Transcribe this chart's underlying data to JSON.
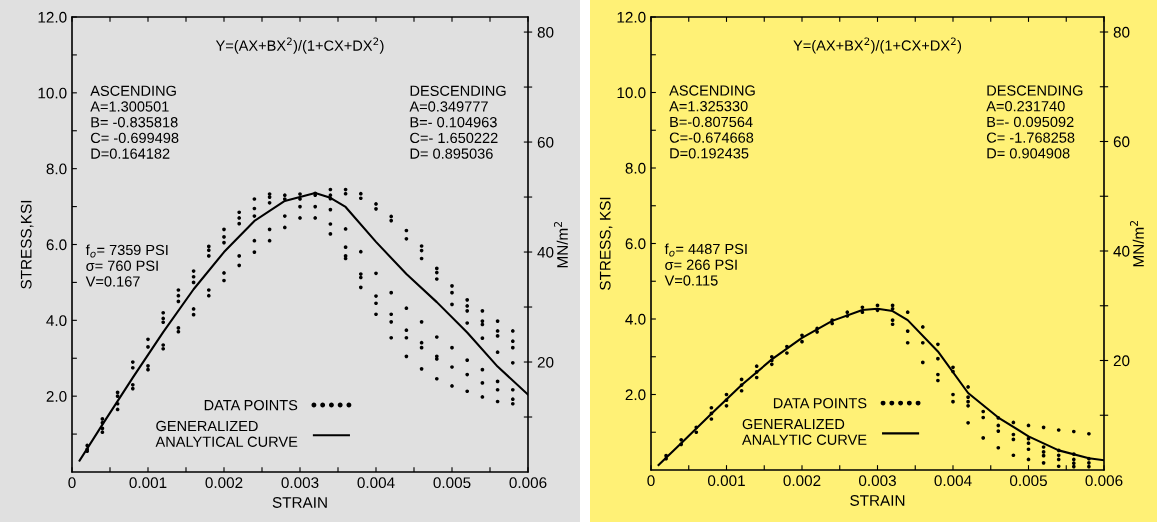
{
  "chart_data": [
    {
      "type": "scatter",
      "xlabel": "STRAIN",
      "ylabel": "STRESS,KSI",
      "y2label": "MN/m$^{2}$",
      "xlim": [
        0,
        0.006
      ],
      "xticks": [
        0,
        {
          "value": 0.0005,
          "label": null
        },
        0.001,
        {
          "value": 0.0015,
          "label": null
        },
        0.002,
        {
          "value": 0.0025,
          "label": null
        },
        0.003,
        {
          "value": 0.0035,
          "label": null
        },
        0.004,
        {
          "value": 0.0045,
          "label": null
        },
        0.005,
        {
          "value": 0.0055,
          "label": null
        },
        0.006
      ],
      "ylim": [
        0,
        12
      ],
      "yticks": [
        {
          "value": 1,
          "label": null
        },
        {
          "value": 2,
          "label": "2.0"
        },
        {
          "value": 3,
          "label": null
        },
        {
          "value": 4,
          "label": "4.0"
        },
        {
          "value": 5,
          "label": null
        },
        {
          "value": 6,
          "label": "6.0"
        },
        {
          "value": 7,
          "label": null
        },
        {
          "value": 8,
          "label": "8.0"
        },
        {
          "value": 9,
          "label": null
        },
        {
          "value": 10,
          "label": "10.0"
        },
        {
          "value": 11,
          "label": null
        },
        {
          "value": 12,
          "label": "12.0"
        }
      ],
      "y2lim": [
        0,
        82.74
      ],
      "y2ticks": [
        {
          "value": 10,
          "label": null
        },
        20,
        {
          "value": 30,
          "label": null
        },
        40,
        {
          "value": 50,
          "label": null
        },
        60,
        {
          "value": 70,
          "label": null
        },
        80
      ],
      "legend": "bottom",
      "grid": false,
      "annotations": [
        "Y=(AX+BX$^{2}$)/(1+CX+DX$^{2}$)",
        "ASCENDING\nA=1.300501\nB= -0.835818\nC= -0.699498\nD=0.164182",
        "DESCENDING\nA=0.349777\nB=- 0.104963\nC=- 1.650222\nD= 0.895036",
        "f$_{o}$= 7359 PSI\nσ= 760 PSI\nV=0.167"
      ],
      "series": [
        {
          "name": "DATA POINTS",
          "marker": "circle",
          "color": "#000000",
          "x": [
            0.0002,
            0.0002,
            0.0002,
            0.0004,
            0.0004,
            0.0004,
            0.0004,
            0.0006,
            0.0006,
            0.0006,
            0.0006,
            0.0008,
            0.0008,
            0.0008,
            0.0008,
            0.001,
            0.001,
            0.001,
            0.001,
            0.0012,
            0.0012,
            0.0012,
            0.0012,
            0.0012,
            0.0014,
            0.0014,
            0.0014,
            0.0014,
            0.0014,
            0.0016,
            0.0016,
            0.0016,
            0.0016,
            0.0016,
            0.0018,
            0.0018,
            0.0018,
            0.0018,
            0.0018,
            0.002,
            0.002,
            0.002,
            0.002,
            0.002,
            0.0022,
            0.0022,
            0.0022,
            0.0022,
            0.0022,
            0.0024,
            0.0024,
            0.0024,
            0.0024,
            0.0024,
            0.0026,
            0.0026,
            0.0026,
            0.0026,
            0.0026,
            0.0028,
            0.0028,
            0.0028,
            0.0028,
            0.003,
            0.003,
            0.003,
            0.003,
            0.0032,
            0.0032,
            0.0032,
            0.0032,
            0.0034,
            0.0034,
            0.0034,
            0.0034,
            0.0034,
            0.0034,
            0.0036,
            0.0036,
            0.0036,
            0.0036,
            0.0036,
            0.0036,
            0.0038,
            0.0038,
            0.0038,
            0.0038,
            0.0038,
            0.0038,
            0.004,
            0.004,
            0.004,
            0.004,
            0.004,
            0.004,
            0.0042,
            0.0042,
            0.0042,
            0.0042,
            0.0042,
            0.0042,
            0.0044,
            0.0044,
            0.0044,
            0.0044,
            0.0044,
            0.0044,
            0.0046,
            0.0046,
            0.0046,
            0.0046,
            0.0046,
            0.0046,
            0.0046,
            0.0048,
            0.0048,
            0.0048,
            0.0048,
            0.0048,
            0.0048,
            0.0048,
            0.005,
            0.005,
            0.005,
            0.005,
            0.005,
            0.005,
            0.0052,
            0.0052,
            0.0052,
            0.0052,
            0.0052,
            0.0052,
            0.0052,
            0.0054,
            0.0054,
            0.0054,
            0.0054,
            0.0054,
            0.0054,
            0.0054,
            0.0056,
            0.0056,
            0.0056,
            0.0056,
            0.0056,
            0.0056,
            0.0056,
            0.0058,
            0.0058,
            0.0058,
            0.0058,
            0.0058,
            0.0058,
            0.0058
          ],
          "values": [
            0.55,
            0.6,
            0.7,
            1.05,
            1.15,
            1.3,
            1.4,
            1.65,
            1.8,
            2.0,
            2.1,
            2.2,
            2.3,
            2.75,
            2.9,
            2.7,
            2.8,
            3.3,
            3.5,
            3.25,
            3.35,
            3.95,
            4.05,
            4.2,
            3.7,
            3.8,
            4.5,
            4.65,
            4.8,
            4.15,
            4.3,
            5.0,
            5.15,
            5.3,
            4.65,
            4.8,
            5.7,
            5.85,
            5.95,
            5.05,
            5.25,
            6.05,
            6.2,
            6.4,
            5.45,
            5.7,
            6.55,
            6.7,
            6.85,
            5.8,
            6.1,
            6.75,
            6.95,
            7.2,
            6.1,
            6.4,
            7.1,
            7.25,
            7.33,
            6.45,
            6.75,
            7.2,
            7.3,
            6.7,
            7.0,
            7.2,
            7.33,
            6.7,
            7.0,
            7.3,
            7.35,
            7.45,
            7.3,
            7.21,
            6.92,
            6.54,
            6.28,
            7.45,
            7.34,
            6.41,
            5.93,
            5.7,
            5.63,
            7.34,
            7.22,
            5.81,
            5.22,
            5.13,
            4.87,
            7.07,
            6.94,
            5.24,
            4.64,
            4.45,
            4.16,
            6.74,
            6.63,
            4.73,
            4.16,
            3.96,
            3.54,
            6.37,
            6.15,
            4.32,
            3.74,
            3.54,
            3.05,
            5.96,
            5.84,
            5.63,
            3.96,
            3.41,
            3.28,
            2.72,
            5.37,
            5.26,
            5.09,
            3.56,
            3.05,
            2.98,
            2.46,
            4.91,
            4.73,
            4.42,
            3.28,
            2.77,
            2.27,
            4.54,
            4.38,
            4.25,
            3.93,
            2.95,
            2.57,
            2.13,
            4.25,
            3.98,
            3.89,
            3.53,
            2.7,
            2.35,
            1.98,
            3.98,
            3.72,
            3.59,
            3.16,
            2.39,
            2.17,
            1.86,
            3.72,
            3.45,
            3.28,
            2.88,
            2.17,
            1.92,
            1.8
          ]
        },
        {
          "name": "GENERALIZED\nANALYTICAL CURVE",
          "type": "line",
          "line_style": "solid",
          "color": "#000000",
          "x": [
            0.0001,
            0.0004,
            0.0008,
            0.0012,
            0.0016,
            0.002,
            0.0024,
            0.0028,
            0.0032,
            0.0034,
            0.0036,
            0.004,
            0.0044,
            0.0048,
            0.0052,
            0.0056,
            0.006
          ],
          "values": [
            0.3,
            1.25,
            2.49,
            3.69,
            4.82,
            5.8,
            6.62,
            7.15,
            7.36,
            7.23,
            6.99,
            6.07,
            5.22,
            4.48,
            3.68,
            2.78,
            2.04
          ]
        }
      ]
    },
    {
      "type": "scatter",
      "xlabel": "STRAIN",
      "ylabel": "STRESS, KSI",
      "y2label": "MN/m$^{2}$",
      "xlim": [
        0,
        0.006
      ],
      "xticks": [
        0,
        {
          "value": 0.0005,
          "label": null
        },
        0.001,
        {
          "value": 0.0015,
          "label": null
        },
        0.002,
        {
          "value": 0.0025,
          "label": null
        },
        0.003,
        {
          "value": 0.0035,
          "label": null
        },
        0.004,
        {
          "value": 0.0045,
          "label": null
        },
        0.005,
        {
          "value": 0.0055,
          "label": null
        },
        0.006
      ],
      "ylim": [
        0,
        12
      ],
      "yticks": [
        {
          "value": 1,
          "label": null
        },
        {
          "value": 2,
          "label": "2.0"
        },
        {
          "value": 3,
          "label": null
        },
        {
          "value": 4,
          "label": "4.0"
        },
        {
          "value": 5,
          "label": null
        },
        {
          "value": 6,
          "label": "6.0"
        },
        {
          "value": 7,
          "label": null
        },
        {
          "value": 8,
          "label": "8.0"
        },
        {
          "value": 9,
          "label": null
        },
        {
          "value": 10,
          "label": "10.0"
        },
        {
          "value": 11,
          "label": null
        },
        {
          "value": 12,
          "label": "12.0"
        }
      ],
      "y2lim": [
        0,
        82.74
      ],
      "y2ticks": [
        {
          "value": 10,
          "label": null
        },
        20,
        {
          "value": 30,
          "label": null
        },
        40,
        {
          "value": 50,
          "label": null
        },
        60,
        {
          "value": 70,
          "label": null
        },
        80
      ],
      "legend": "bottom",
      "grid": false,
      "annotations": [
        "Y=(AX+BX$^{2}$)/(1+CX+DX$^{2}$)",
        "ASCENDING\nA=1.325330\nB=-0.807564\nC=-0.674668\nD=0.192435",
        "DESCENDING\nA=0.231740\nB=- 0.095092\nC= -1.768258\nD= 0.904908",
        "f$_{o}$= 4487 PSI\nσ= 266 PSI\nV=0.115"
      ],
      "series": [
        {
          "name": "DATA POINTS",
          "marker": "circle",
          "color": "#000000",
          "x": [
            0.0002,
            0.0002,
            0.0004,
            0.0004,
            0.0006,
            0.0006,
            0.0008,
            0.0008,
            0.0008,
            0.001,
            0.001,
            0.001,
            0.0012,
            0.0012,
            0.0012,
            0.0014,
            0.0014,
            0.0014,
            0.0016,
            0.0016,
            0.0016,
            0.0018,
            0.0018,
            0.002,
            0.002,
            0.0022,
            0.0022,
            0.0024,
            0.0024,
            0.0026,
            0.0026,
            0.0028,
            0.0028,
            0.003,
            0.003,
            0.0032,
            0.0032,
            0.0032,
            0.0032,
            0.0034,
            0.0034,
            0.0034,
            0.0036,
            0.0036,
            0.0036,
            0.0038,
            0.0038,
            0.0038,
            0.0038,
            0.004,
            0.004,
            0.004,
            0.004,
            0.0042,
            0.0042,
            0.0042,
            0.0042,
            0.0042,
            0.0044,
            0.0044,
            0.0044,
            0.0046,
            0.0046,
            0.0046,
            0.0046,
            0.0048,
            0.0048,
            0.0048,
            0.0048,
            0.005,
            0.005,
            0.005,
            0.005,
            0.005,
            0.0052,
            0.0052,
            0.0052,
            0.0052,
            0.0052,
            0.0054,
            0.0054,
            0.0054,
            0.0054,
            0.0054,
            0.0056,
            0.0056,
            0.0056,
            0.0056,
            0.0056,
            0.0058,
            0.0058,
            0.0058,
            0.0058
          ],
          "values": [
            0.3,
            0.38,
            0.68,
            0.8,
            1.0,
            1.13,
            1.35,
            1.5,
            1.65,
            1.7,
            1.85,
            2.0,
            2.1,
            2.25,
            2.4,
            2.45,
            2.6,
            2.75,
            2.8,
            2.9,
            3.0,
            3.1,
            3.27,
            3.4,
            3.57,
            3.66,
            3.75,
            3.88,
            3.97,
            4.08,
            4.18,
            4.18,
            4.31,
            4.23,
            4.36,
            4.36,
            4.27,
            3.97,
            3.86,
            4.18,
            3.68,
            3.37,
            3.79,
            3.37,
            2.85,
            3.33,
            2.95,
            2.53,
            2.37,
            2.72,
            2.61,
            2.0,
            1.81,
            2.2,
            1.93,
            1.81,
            1.7,
            1.25,
            1.55,
            1.39,
            0.85,
            1.38,
            1.18,
            1.03,
            0.59,
            1.26,
            0.94,
            0.81,
            0.39,
            1.18,
            0.83,
            0.71,
            0.55,
            0.28,
            1.13,
            0.61,
            0.48,
            0.38,
            0.19,
            1.06,
            0.52,
            0.39,
            0.28,
            0.1,
            1.02,
            0.42,
            0.28,
            0.18,
            0.09,
            0.96,
            0.3,
            0.19,
            0.09
          ]
        },
        {
          "name": "GENERALIZED\nANALYTIC CURVE",
          "type": "line",
          "line_style": "solid",
          "color": "#000000",
          "x": [
            0.0001,
            0.0004,
            0.0008,
            0.0012,
            0.0016,
            0.002,
            0.0024,
            0.0028,
            0.003,
            0.0032,
            0.0034,
            0.0038,
            0.0042,
            0.0046,
            0.005,
            0.0054,
            0.0058,
            0.006
          ],
          "values": [
            0.13,
            0.71,
            1.49,
            2.25,
            2.93,
            3.5,
            3.95,
            4.24,
            4.27,
            4.21,
            3.97,
            3.14,
            2.04,
            1.39,
            0.89,
            0.52,
            0.31,
            0.26
          ]
        }
      ]
    }
  ]
}
